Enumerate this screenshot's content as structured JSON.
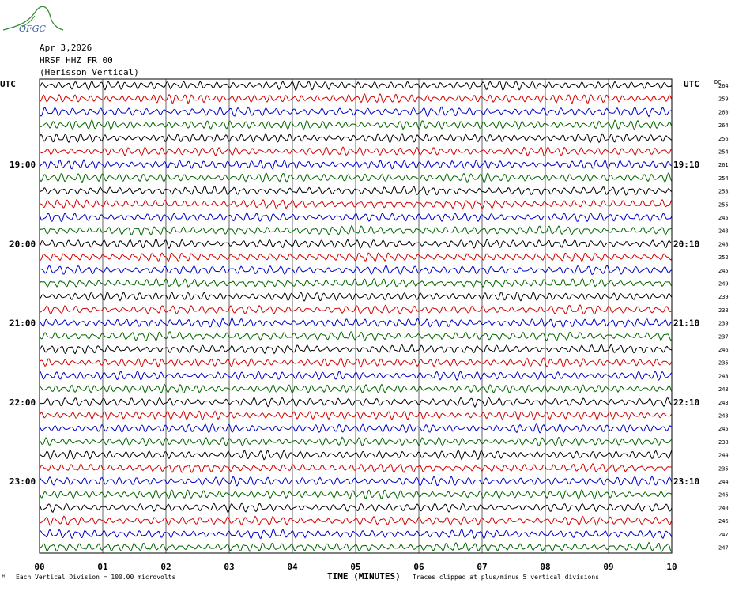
{
  "logo": {
    "text": "OFGC"
  },
  "header": {
    "date": "Apr 3,2026",
    "station": "HRSF HHZ FR 00",
    "site": "(Herisson Vertical)"
  },
  "colors": {
    "trace_cycle": [
      "#000000",
      "#d40000",
      "#0000c8",
      "#006400"
    ],
    "grid": "#000000"
  },
  "chart_data": {
    "type": "line",
    "title": "",
    "xlabel": "TIME (MINUTES)",
    "x_ticks": [
      "00",
      "01",
      "02",
      "03",
      "04",
      "05",
      "06",
      "07",
      "08",
      "09",
      "10"
    ],
    "xlim": [
      0,
      10
    ],
    "left_axis_label": "UTC",
    "right_axis_label": "UTC",
    "dc_label": "DC",
    "left_hour_labels": [
      {
        "row": 6,
        "label": "19:00"
      },
      {
        "row": 12,
        "label": "20:00"
      },
      {
        "row": 18,
        "label": "21:00"
      },
      {
        "row": 24,
        "label": "22:00"
      },
      {
        "row": 30,
        "label": "23:00"
      }
    ],
    "right_hour_labels": [
      {
        "row": 6,
        "label": "19:10"
      },
      {
        "row": 12,
        "label": "20:10"
      },
      {
        "row": 18,
        "label": "21:10"
      },
      {
        "row": 24,
        "label": "22:10"
      },
      {
        "row": 30,
        "label": "23:10"
      }
    ],
    "dc_offsets": [
      "264",
      "259",
      "260",
      "264",
      "256",
      "254",
      "261",
      "254",
      "258",
      "255",
      "245",
      "248",
      "248",
      "252",
      "245",
      "249",
      "239",
      "238",
      "239",
      "237",
      "246",
      "235",
      "243",
      "243",
      "243",
      "243",
      "245",
      "238",
      "244",
      "235",
      "244",
      "246",
      "240",
      "246",
      "247",
      "247"
    ],
    "trace_count": 36,
    "footer_scale": "Each Vertical Division =  100.00 microvolts",
    "footer_clip": "Traces clipped at plus/minus 5 vertical divisions"
  }
}
